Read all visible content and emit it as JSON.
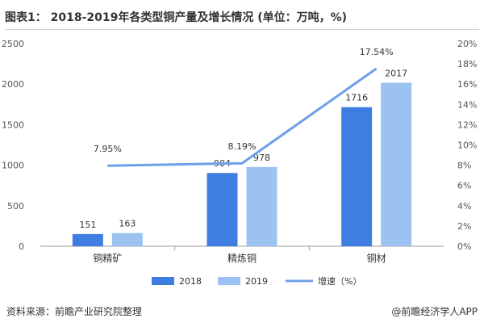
{
  "title": "图表1： 2018-2019年各类型铜产量及增长情况 (单位：万吨，%)",
  "source": "资料来源：前瞻产业研究院整理",
  "brand": "@前瞻经济学人APP",
  "colors": {
    "series_2018": "#3d7ee0",
    "series_2019": "#9cc2f2",
    "growth_line": "#6ea0e8",
    "axis": "#999999",
    "text": "#555555"
  },
  "chart_data": {
    "type": "bar",
    "categories": [
      "铜精矿",
      "精炼铜",
      "铜材"
    ],
    "series": [
      {
        "name": "2018",
        "values": [
          151,
          904,
          1716
        ]
      },
      {
        "name": "2019",
        "values": [
          163,
          978,
          2017
        ]
      }
    ],
    "line_series": {
      "name": "增速（%）",
      "values": [
        7.95,
        8.19,
        17.54
      ],
      "labels": [
        "7.95%",
        "8.19%",
        "17.54%"
      ],
      "axis": "right"
    },
    "ylim_left": [
      0,
      2500
    ],
    "yticks_left": [
      "0",
      "500",
      "1000",
      "1500",
      "2000",
      "2500"
    ],
    "ylim_right": [
      0,
      20
    ],
    "yticks_right": [
      "0%",
      "2%",
      "4%",
      "6%",
      "8%",
      "10%",
      "12%",
      "14%",
      "16%",
      "18%",
      "20%"
    ],
    "grid": false,
    "legend_position": "bottom"
  }
}
